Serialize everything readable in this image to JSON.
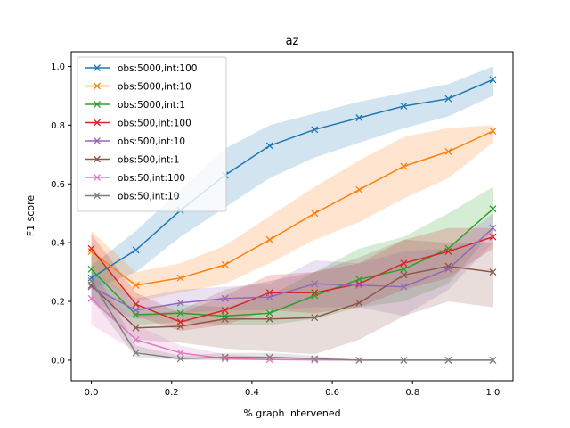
{
  "chart_data": {
    "type": "line",
    "title": "az",
    "xlabel": "% graph intervened",
    "ylabel": "F1 score",
    "xlim": [
      -0.05,
      1.05
    ],
    "ylim": [
      -0.07,
      1.05
    ],
    "xticks": [
      0.0,
      0.2,
      0.4,
      0.6,
      0.8,
      1.0
    ],
    "xtick_labels": [
      "0.0",
      "0.2",
      "0.4",
      "0.6",
      "0.8",
      "1.0"
    ],
    "yticks": [
      0.0,
      0.2,
      0.4,
      0.6,
      0.8,
      1.0
    ],
    "ytick_labels": [
      "0.0",
      "0.2",
      "0.4",
      "0.6",
      "0.8",
      "1.0"
    ],
    "legend_position": "upper-left",
    "x": [
      0.0,
      0.111,
      0.222,
      0.333,
      0.444,
      0.556,
      0.667,
      0.778,
      0.889,
      1.0
    ],
    "series": [
      {
        "name": "obs:5000,int:100",
        "color": "#1f77b4",
        "values": [
          0.28,
          0.375,
          0.51,
          0.63,
          0.73,
          0.785,
          0.825,
          0.865,
          0.89,
          0.955
        ],
        "lower": [
          0.24,
          0.3,
          0.42,
          0.52,
          0.62,
          0.69,
          0.74,
          0.79,
          0.83,
          0.9
        ],
        "upper": [
          0.32,
          0.44,
          0.58,
          0.72,
          0.8,
          0.84,
          0.88,
          0.91,
          0.94,
          1.0
        ]
      },
      {
        "name": "obs:5000,int:10",
        "color": "#ff7f0e",
        "values": [
          0.37,
          0.255,
          0.28,
          0.325,
          0.41,
          0.5,
          0.58,
          0.66,
          0.71,
          0.78
        ],
        "lower": [
          0.3,
          0.2,
          0.23,
          0.26,
          0.33,
          0.41,
          0.47,
          0.55,
          0.62,
          0.74
        ],
        "upper": [
          0.44,
          0.3,
          0.33,
          0.39,
          0.49,
          0.59,
          0.68,
          0.76,
          0.79,
          0.8
        ]
      },
      {
        "name": "obs:5000,int:1",
        "color": "#2ca02c",
        "values": [
          0.31,
          0.155,
          0.16,
          0.15,
          0.16,
          0.22,
          0.275,
          0.31,
          0.38,
          0.515
        ],
        "lower": [
          0.25,
          0.12,
          0.13,
          0.12,
          0.12,
          0.14,
          0.18,
          0.2,
          0.26,
          0.44
        ],
        "upper": [
          0.38,
          0.18,
          0.19,
          0.18,
          0.22,
          0.3,
          0.38,
          0.42,
          0.5,
          0.59
        ]
      },
      {
        "name": "obs:500,int:100",
        "color": "#d62728",
        "values": [
          0.38,
          0.19,
          0.13,
          0.17,
          0.23,
          0.23,
          0.26,
          0.33,
          0.37,
          0.42
        ],
        "lower": [
          0.32,
          0.15,
          0.1,
          0.12,
          0.17,
          0.16,
          0.18,
          0.24,
          0.28,
          0.38
        ],
        "upper": [
          0.43,
          0.23,
          0.16,
          0.22,
          0.29,
          0.3,
          0.33,
          0.41,
          0.45,
          0.45
        ]
      },
      {
        "name": "obs:500,int:10",
        "color": "#9467bd",
        "values": [
          0.25,
          0.17,
          0.195,
          0.21,
          0.215,
          0.26,
          0.255,
          0.25,
          0.31,
          0.45
        ],
        "lower": [
          0.2,
          0.14,
          0.16,
          0.17,
          0.17,
          0.18,
          0.18,
          0.15,
          0.24,
          0.4
        ],
        "upper": [
          0.3,
          0.21,
          0.24,
          0.25,
          0.26,
          0.34,
          0.33,
          0.37,
          0.38,
          0.5
        ]
      },
      {
        "name": "obs:500,int:1",
        "color": "#8c564b",
        "values": [
          0.255,
          0.11,
          0.115,
          0.14,
          0.14,
          0.145,
          0.195,
          0.29,
          0.32,
          0.3
        ],
        "lower": [
          0.2,
          0.07,
          0.06,
          0.04,
          0.03,
          0.02,
          0.07,
          0.15,
          0.2,
          0.18
        ],
        "upper": [
          0.31,
          0.15,
          0.17,
          0.24,
          0.27,
          0.3,
          0.35,
          0.41,
          0.4,
          0.4
        ]
      },
      {
        "name": "obs:50,int:100",
        "color": "#e377c2",
        "values": [
          0.21,
          0.07,
          0.025,
          0.005,
          0.002,
          0.001,
          0.0,
          0.0,
          0.0,
          0.0
        ],
        "lower": [
          0.12,
          0.03,
          0.005,
          0.0,
          0.0,
          0.0,
          0.0,
          0.0,
          0.0,
          0.0
        ],
        "upper": [
          0.29,
          0.12,
          0.05,
          0.02,
          0.01,
          0.005,
          0.0,
          0.0,
          0.0,
          0.0
        ]
      },
      {
        "name": "obs:50,int:10",
        "color": "#7f7f7f",
        "values": [
          0.27,
          0.025,
          0.005,
          0.01,
          0.01,
          0.005,
          0.0,
          0.0,
          0.0,
          0.0
        ],
        "lower": [
          0.21,
          0.01,
          0.0,
          0.0,
          0.0,
          0.0,
          0.0,
          0.0,
          0.0,
          0.0
        ],
        "upper": [
          0.33,
          0.05,
          0.015,
          0.025,
          0.025,
          0.015,
          0.0,
          0.0,
          0.0,
          0.0
        ]
      }
    ]
  }
}
